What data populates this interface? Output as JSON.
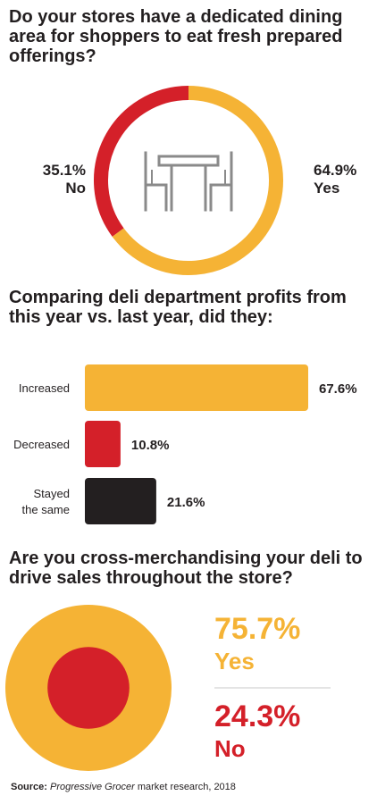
{
  "colors": {
    "yellow": "#f5b335",
    "red": "#d42029",
    "black": "#231f20",
    "icon_gray": "#8a8a8a",
    "divider": "#c8c8c8"
  },
  "icon": "dining-table-chairs-icon",
  "source": {
    "label": "Source:",
    "publication": "Progressive Grocer",
    "rest": "market research, 2018"
  },
  "chart_data": [
    {
      "type": "pie",
      "title": "Do your stores have a dedicated dining area for shoppers to eat fresh prepared offerings?",
      "slices": [
        {
          "label": "Yes",
          "value": 64.9,
          "display": "64.9%",
          "color": "#f5b335"
        },
        {
          "label": "No",
          "value": 35.1,
          "display": "35.1%",
          "color": "#d42029"
        }
      ]
    },
    {
      "type": "bar",
      "title": "Comparing deli department profits from this year vs. last year, did they:",
      "categories": [
        "Increased",
        "Decreased",
        "Stayed the same"
      ],
      "category_lines": [
        [
          "Increased"
        ],
        [
          "Decreased"
        ],
        [
          "Stayed",
          "the same"
        ]
      ],
      "values": [
        67.6,
        10.8,
        21.6
      ],
      "labels": [
        "67.6%",
        "10.8%",
        "21.6%"
      ],
      "colors": [
        "#f5b335",
        "#d42029",
        "#231f20"
      ]
    },
    {
      "type": "pie",
      "title": "Are you cross-merchandising your deli to drive sales throughout the store?",
      "slices": [
        {
          "label": "Yes",
          "value": 75.7,
          "display": "75.7%",
          "color": "#f5b335"
        },
        {
          "label": "No",
          "value": 24.3,
          "display": "24.3%",
          "color": "#d42029"
        }
      ]
    }
  ]
}
